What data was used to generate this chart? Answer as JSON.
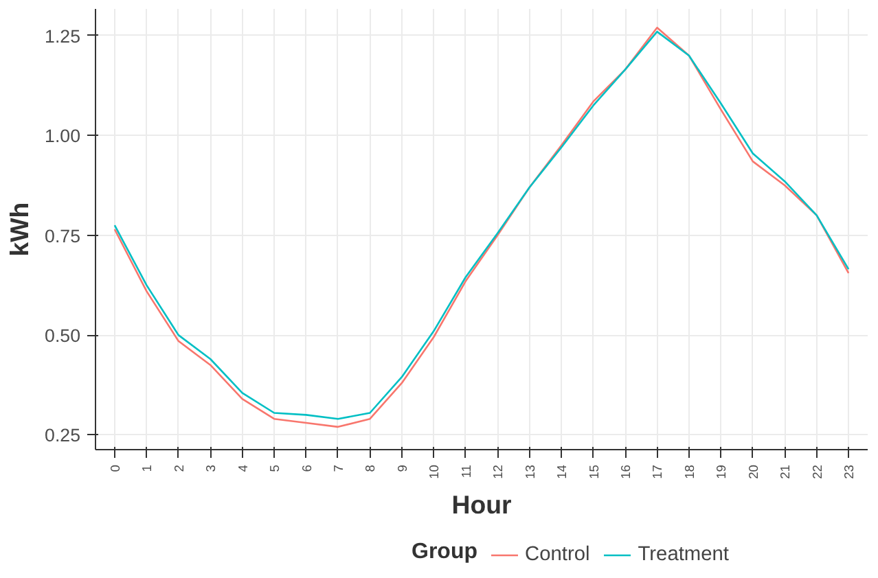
{
  "chart_data": {
    "type": "line",
    "xlabel": "Hour",
    "ylabel": "kWh",
    "legend_title": "Group",
    "categories": [
      "0",
      "1",
      "2",
      "3",
      "4",
      "5",
      "6",
      "7",
      "8",
      "9",
      "10",
      "11",
      "12",
      "13",
      "14",
      "15",
      "16",
      "17",
      "18",
      "19",
      "20",
      "21",
      "22",
      "23"
    ],
    "series": [
      {
        "name": "Control",
        "color": "#f8766d",
        "values": [
          0.765,
          0.61,
          0.485,
          0.425,
          0.34,
          0.29,
          0.28,
          0.27,
          0.29,
          0.38,
          0.495,
          0.635,
          0.75,
          0.87,
          0.975,
          1.085,
          1.165,
          1.27,
          1.2,
          1.065,
          0.935,
          0.875,
          0.8,
          0.655
        ]
      },
      {
        "name": "Treatment",
        "color": "#00bfc4",
        "values": [
          0.775,
          0.625,
          0.5,
          0.44,
          0.355,
          0.305,
          0.3,
          0.29,
          0.305,
          0.395,
          0.51,
          0.645,
          0.755,
          0.87,
          0.97,
          1.075,
          1.165,
          1.26,
          1.2,
          1.08,
          0.955,
          0.885,
          0.8,
          0.665
        ]
      }
    ],
    "ylim": [
      0.213,
      1.317
    ],
    "yticks": [
      {
        "value": 0.25,
        "label": "0.25"
      },
      {
        "value": 0.5,
        "label": "0.50"
      },
      {
        "value": 0.75,
        "label": "0.75"
      },
      {
        "value": 1.0,
        "label": "1.00"
      },
      {
        "value": 1.25,
        "label": "1.25"
      }
    ],
    "grid": true,
    "legend": "bottom",
    "line_style": "solid"
  }
}
